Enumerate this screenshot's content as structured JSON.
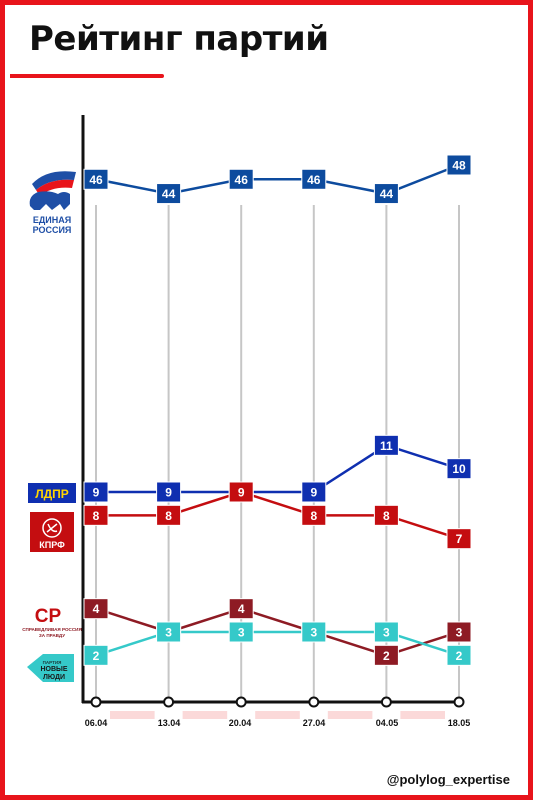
{
  "page": {
    "title": "Рейтинг партий",
    "handle": "@polylog_expertise"
  },
  "colors": {
    "accent": "#e8141b",
    "axis": "#111111",
    "gridline": "#c6c6c6"
  },
  "logos": [
    {
      "icon": "edinaya-rossiya-bear-flag-icon",
      "text_lines": [
        "ЕДИНАЯ",
        "РОССИЯ"
      ]
    },
    {
      "icon": "ldpr-logo-icon",
      "text_lines": [
        "ЛДПР"
      ]
    },
    {
      "icon": "kprf-logo-icon",
      "text_lines": [
        "КПРФ"
      ]
    },
    {
      "icon": "sr-logo-icon",
      "text_lines": [
        "СР",
        "СПРАВЕДЛИВАЯ РОССИЯ",
        "ЗА ПРАВДУ"
      ]
    },
    {
      "icon": "novye-lyudi-logo-icon",
      "text_lines": [
        "ПАРТИЯ",
        "НОВЫЕ",
        "ЛЮДИ"
      ]
    }
  ],
  "chart_data": {
    "type": "line",
    "title": "Рейтинг партий",
    "x": [
      "06.04",
      "13.04",
      "20.04",
      "27.04",
      "04.05",
      "18.05"
    ],
    "series": [
      {
        "name": "ЕДИНАЯ РОССИЯ",
        "color": "#0d4b9e",
        "values": [
          46,
          44,
          46,
          46,
          44,
          48
        ]
      },
      {
        "name": "ЛДПР",
        "color": "#0f2fb0",
        "values": [
          9,
          9,
          9,
          9,
          11,
          10
        ]
      },
      {
        "name": "КПРФ",
        "color": "#c40d10",
        "values": [
          8,
          8,
          9,
          8,
          8,
          7
        ]
      },
      {
        "name": "СПРАВЕДЛИВАЯ РОССИЯ",
        "color": "#8e1b24",
        "values": [
          4,
          3,
          4,
          3,
          2,
          3
        ]
      },
      {
        "name": "НОВЫЕ ЛЮДИ",
        "color": "#35c9c9",
        "values": [
          2,
          3,
          3,
          3,
          3,
          2
        ]
      }
    ],
    "point_labels": [
      [
        "46",
        "44",
        "46",
        "46",
        "44",
        "48"
      ],
      [
        "9",
        "9",
        "9",
        "9",
        "11",
        "10"
      ],
      [
        "8",
        "8",
        "9",
        "8",
        "8",
        "7"
      ],
      [
        "4",
        "3",
        "4",
        "3",
        "2",
        "3"
      ],
      [
        "2",
        "3",
        "3",
        "3",
        "3",
        "2"
      ]
    ],
    "ylim": [
      0,
      48
    ],
    "grid": true,
    "legend": "left (party logos)"
  }
}
